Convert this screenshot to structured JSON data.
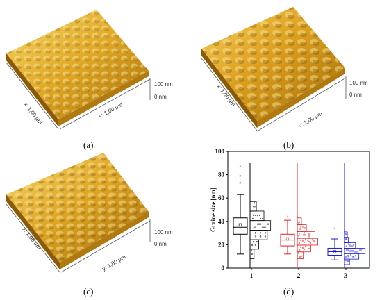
{
  "panels": {
    "a": {
      "label": "(a)",
      "x_axis": "x: 1,00 µm",
      "y_axis": "y: 1,00 µm",
      "scale_top": "100 nm",
      "scale_bottom": "0 nm"
    },
    "b": {
      "label": "(b)",
      "x_axis": "x: 1,00 µm",
      "y_axis": "y: 1,00 µm",
      "scale_top": "100 nm",
      "scale_bottom": "0 nm"
    },
    "c": {
      "label": "(c)",
      "x_axis": "x: 1,00 µm",
      "y_axis": "y: 1,00 µm",
      "scale_top": "100 nm",
      "scale_bottom": "0 nm"
    },
    "d": {
      "label": "(d)"
    }
  },
  "colors": {
    "series1": "#000000",
    "series2": "#e02020",
    "series3": "#1a1ad0",
    "gold_light": "#f5c84a",
    "gold_dark": "#9a6a05"
  },
  "chart_data": {
    "type": "box",
    "title": "",
    "ylabel": "Graine size [nm]",
    "xlabel": "",
    "categories": [
      "1",
      "2",
      "3"
    ],
    "yticks": [
      "0",
      "20",
      "40",
      "60",
      "80",
      "100"
    ],
    "ylim": [
      0,
      100
    ],
    "grid": false,
    "series": [
      {
        "category": "1",
        "min": 12,
        "q1": 29,
        "median": 35,
        "mean": 37,
        "q3": 43,
        "max": 63,
        "outliers": [
          73,
          79,
          87
        ],
        "hist_max": 90,
        "color": "#000000"
      },
      {
        "category": "2",
        "min": 12,
        "q1": 19,
        "median": 24,
        "mean": 25,
        "q3": 29,
        "max": 41,
        "outliers": [
          44
        ],
        "hist_max": 90,
        "color": "#e02020"
      },
      {
        "category": "3",
        "min": 7,
        "q1": 11,
        "median": 14,
        "mean": 14,
        "q3": 17,
        "max": 25,
        "outliers": [
          34
        ],
        "hist_max": 90,
        "color": "#1a1ad0"
      }
    ]
  }
}
